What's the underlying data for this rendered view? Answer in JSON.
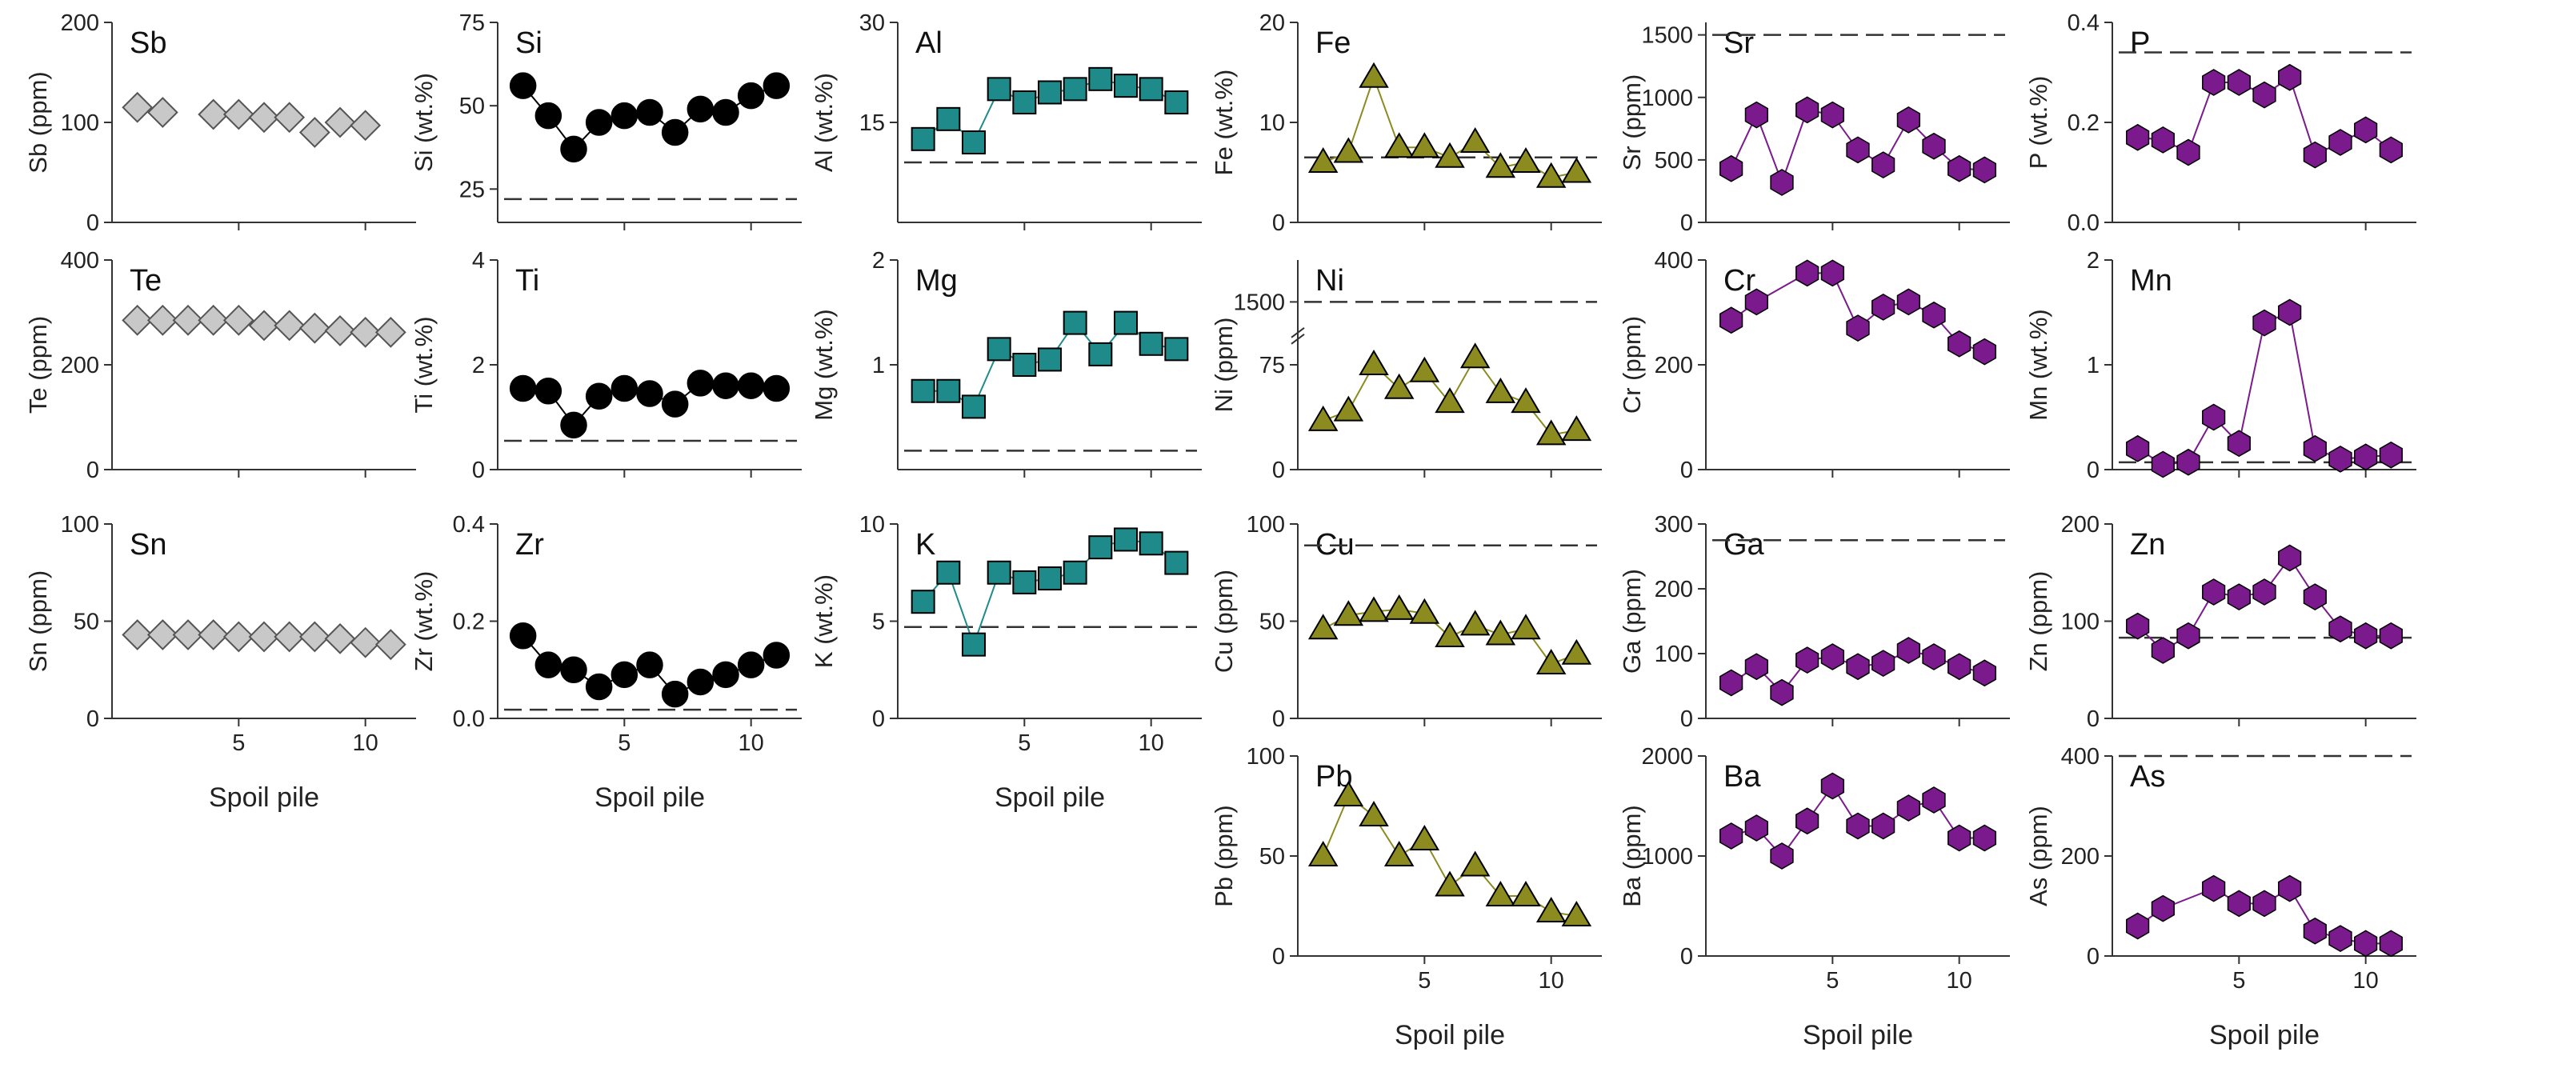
{
  "figure": {
    "x_axis_label": "Spoil pile",
    "colors": {
      "grey": "#c8c8c8",
      "black": "#000000",
      "teal": "#1f8a8a",
      "olive": "#8b8b20",
      "purple": "#7a1a8c"
    }
  },
  "chart_data": [
    {
      "id": "Sb",
      "type": "scatter",
      "title": "Sb",
      "ylabel": "Sb (ppm)",
      "ylim": [
        0,
        200
      ],
      "yticks": [
        0,
        100,
        200
      ],
      "xlim": [
        0,
        12
      ],
      "xticks": [
        5,
        10
      ],
      "marker": "diamond",
      "color": "#c8c8c8",
      "connect": false,
      "x": [
        1,
        2,
        4,
        5,
        6,
        7,
        8,
        9,
        10
      ],
      "values": [
        115,
        110,
        108,
        108,
        105,
        105,
        90,
        100,
        97
      ],
      "reference": null
    },
    {
      "id": "Si",
      "type": "line",
      "title": "Si",
      "ylabel": "Si (wt.%)",
      "ylim": [
        15,
        75
      ],
      "yticks": [
        25,
        50,
        75
      ],
      "xlim": [
        0,
        12
      ],
      "xticks": [
        5,
        10
      ],
      "marker": "circle",
      "color": "#000000",
      "connect": true,
      "x": [
        1,
        2,
        3,
        4,
        5,
        6,
        7,
        8,
        9,
        10,
        11
      ],
      "values": [
        56,
        47,
        37,
        45,
        47,
        48,
        42,
        49,
        48,
        53,
        56
      ],
      "reference": 22
    },
    {
      "id": "Al",
      "type": "line",
      "title": "Al",
      "ylabel": "Al (wt.%)",
      "ylim": [
        0,
        30
      ],
      "yticks": [
        15,
        30
      ],
      "xlim": [
        0,
        12
      ],
      "xticks": [
        5,
        10
      ],
      "marker": "square",
      "color": "#1f8a8a",
      "connect": true,
      "x": [
        1,
        2,
        3,
        4,
        5,
        6,
        7,
        8,
        9,
        10,
        11
      ],
      "values": [
        12.5,
        15.5,
        12,
        20,
        18,
        19.5,
        20,
        21.5,
        20.5,
        20,
        18
      ],
      "reference": 9
    },
    {
      "id": "Fe",
      "type": "line",
      "title": "Fe",
      "ylabel": "Fe (wt.%)",
      "ylim": [
        0,
        20
      ],
      "yticks": [
        0,
        10,
        20
      ],
      "xlim": [
        0,
        12
      ],
      "xticks": [
        5,
        10
      ],
      "marker": "triangle",
      "color": "#8b8b20",
      "connect": true,
      "x": [
        1,
        2,
        3,
        4,
        5,
        6,
        7,
        8,
        9,
        10,
        11
      ],
      "values": [
        6,
        7,
        14.5,
        7.5,
        7.5,
        6.5,
        8,
        5.5,
        6,
        4.5,
        5
      ],
      "reference": 6.5
    },
    {
      "id": "Sr",
      "type": "line",
      "title": "Sr",
      "ylabel": "Sr (ppm)",
      "ylim": [
        0,
        1600
      ],
      "yticks": [
        0,
        500,
        1000,
        1500
      ],
      "xlim": [
        0,
        12
      ],
      "xticks": [
        5,
        10
      ],
      "marker": "hexagon",
      "color": "#7a1a8c",
      "connect": true,
      "x": [
        1,
        2,
        3,
        4,
        5,
        6,
        7,
        8,
        9,
        10,
        11
      ],
      "values": [
        430,
        860,
        320,
        900,
        860,
        580,
        460,
        820,
        610,
        430,
        420
      ],
      "reference": 1500
    },
    {
      "id": "P",
      "type": "line",
      "title": "P",
      "ylabel": "P (wt.%)",
      "ylim": [
        0,
        0.4
      ],
      "yticks": [
        0.0,
        0.2,
        0.4
      ],
      "ytick_labels": [
        "0.0",
        "0.2",
        "0.4"
      ],
      "xlim": [
        0,
        12
      ],
      "xticks": [
        5,
        10
      ],
      "marker": "hexagon",
      "color": "#7a1a8c",
      "connect": true,
      "x": [
        1,
        2,
        3,
        4,
        5,
        6,
        7,
        8,
        9,
        10,
        11
      ],
      "values": [
        0.17,
        0.165,
        0.14,
        0.28,
        0.28,
        0.255,
        0.29,
        0.135,
        0.16,
        0.185,
        0.145
      ],
      "reference": 0.34
    },
    {
      "id": "Te",
      "type": "scatter",
      "title": "Te",
      "ylabel": "Te (ppm)",
      "ylim": [
        0,
        400
      ],
      "yticks": [
        0,
        200,
        400
      ],
      "xlim": [
        0,
        12
      ],
      "xticks": [
        5,
        10
      ],
      "marker": "diamond",
      "color": "#c8c8c8",
      "connect": false,
      "x": [
        1,
        2,
        3,
        4,
        5,
        6,
        7,
        8,
        9,
        10,
        11
      ],
      "values": [
        285,
        285,
        285,
        285,
        285,
        275,
        275,
        270,
        265,
        262,
        262
      ],
      "reference": null
    },
    {
      "id": "Ti",
      "type": "line",
      "title": "Ti",
      "ylabel": "Ti (wt.%)",
      "ylim": [
        0,
        4
      ],
      "yticks": [
        0,
        2,
        4
      ],
      "xlim": [
        0,
        12
      ],
      "xticks": [
        5,
        10
      ],
      "marker": "circle",
      "color": "#000000",
      "connect": true,
      "x": [
        1,
        2,
        3,
        4,
        5,
        6,
        7,
        8,
        9,
        10,
        11
      ],
      "values": [
        1.55,
        1.5,
        0.85,
        1.4,
        1.55,
        1.45,
        1.25,
        1.65,
        1.6,
        1.6,
        1.55
      ],
      "reference": 0.55
    },
    {
      "id": "Mg",
      "type": "line",
      "title": "Mg",
      "ylabel": "Mg (wt.%)",
      "ylim": [
        0,
        2
      ],
      "yticks": [
        1,
        2
      ],
      "xlim": [
        0,
        12
      ],
      "xticks": [
        5,
        10
      ],
      "marker": "square",
      "color": "#1f8a8a",
      "connect": true,
      "x": [
        1,
        2,
        3,
        4,
        5,
        6,
        7,
        8,
        9,
        10,
        11
      ],
      "values": [
        0.75,
        0.75,
        0.6,
        1.15,
        1.0,
        1.05,
        1.4,
        1.1,
        1.4,
        1.2,
        1.15
      ],
      "reference": 0.18
    },
    {
      "id": "Ni",
      "type": "line",
      "title": "Ni",
      "ylabel": "Ni (ppm)",
      "ylim": [
        0,
        150
      ],
      "yticks": [
        0,
        75
      ],
      "extra_tick": {
        "value": 1500,
        "label": "1500",
        "at": 120
      },
      "xlim": [
        0,
        12
      ],
      "xticks": [
        5,
        10
      ],
      "marker": "triangle",
      "color": "#8b8b20",
      "connect": true,
      "x": [
        1,
        2,
        3,
        4,
        5,
        6,
        7,
        8,
        9,
        10,
        11
      ],
      "values": [
        35,
        42,
        75,
        58,
        70,
        48,
        80,
        55,
        48,
        25,
        28
      ],
      "reference_plot_at": 120
    },
    {
      "id": "Cr",
      "type": "line",
      "title": "Cr",
      "ylabel": "Cr (ppm)",
      "ylim": [
        0,
        400
      ],
      "yticks": [
        0,
        200,
        400
      ],
      "xlim": [
        0,
        12
      ],
      "xticks": [
        5,
        10
      ],
      "marker": "hexagon",
      "color": "#7a1a8c",
      "connect": true,
      "x": [
        1,
        2,
        4,
        5,
        6,
        7,
        8,
        9,
        10,
        11
      ],
      "values": [
        285,
        320,
        375,
        375,
        270,
        310,
        320,
        295,
        240,
        225
      ],
      "reference": null
    },
    {
      "id": "Mn",
      "type": "line",
      "title": "Mn",
      "ylabel": "Mn (wt.%)",
      "ylim": [
        0,
        2
      ],
      "yticks": [
        0,
        1,
        2
      ],
      "xlim": [
        0,
        12
      ],
      "xticks": [
        5,
        10
      ],
      "marker": "hexagon",
      "color": "#7a1a8c",
      "connect": true,
      "x": [
        1,
        2,
        3,
        4,
        5,
        6,
        7,
        8,
        9,
        10,
        11
      ],
      "values": [
        0.2,
        0.05,
        0.07,
        0.5,
        0.25,
        1.4,
        1.5,
        0.2,
        0.1,
        0.12,
        0.14
      ],
      "reference": 0.07
    },
    {
      "id": "Sn",
      "type": "scatter",
      "title": "Sn",
      "ylabel": "Sn (ppm)",
      "ylim": [
        0,
        100
      ],
      "yticks": [
        0,
        50,
        100
      ],
      "xlim": [
        0,
        12
      ],
      "xticks": [
        5,
        10
      ],
      "marker": "diamond",
      "color": "#c8c8c8",
      "connect": false,
      "x": [
        1,
        2,
        3,
        4,
        5,
        6,
        7,
        8,
        9,
        10,
        11
      ],
      "values": [
        43,
        43,
        43,
        43,
        42,
        42,
        42,
        42,
        41,
        39,
        38
      ],
      "reference": null
    },
    {
      "id": "Zr",
      "type": "line",
      "title": "Zr",
      "ylabel": "Zr (wt.%)",
      "ylim": [
        0,
        0.4
      ],
      "yticks": [
        0.0,
        0.2,
        0.4
      ],
      "ytick_labels": [
        "0.0",
        "0.2",
        "0.4"
      ],
      "xlim": [
        0,
        12
      ],
      "xticks": [
        5,
        10
      ],
      "marker": "circle",
      "color": "#000000",
      "connect": true,
      "x": [
        1,
        2,
        3,
        4,
        5,
        6,
        7,
        8,
        9,
        10,
        11
      ],
      "values": [
        0.17,
        0.11,
        0.1,
        0.065,
        0.09,
        0.11,
        0.05,
        0.075,
        0.09,
        0.11,
        0.13
      ],
      "reference": 0.018
    },
    {
      "id": "K",
      "type": "line",
      "title": "K",
      "ylabel": "K (wt.%)",
      "ylim": [
        0,
        10
      ],
      "yticks": [
        0,
        5,
        10
      ],
      "xlim": [
        0,
        12
      ],
      "xticks": [
        5,
        10
      ],
      "marker": "square",
      "color": "#1f8a8a",
      "connect": true,
      "x": [
        1,
        2,
        3,
        4,
        5,
        6,
        7,
        8,
        9,
        10,
        11
      ],
      "values": [
        6,
        7.5,
        3.8,
        7.5,
        7,
        7.2,
        7.5,
        8.8,
        9.2,
        9,
        8
      ],
      "reference": 4.7
    },
    {
      "id": "Cu",
      "type": "line",
      "title": "Cu",
      "ylabel": "Cu (ppm)",
      "ylim": [
        0,
        100
      ],
      "yticks": [
        0,
        50,
        100
      ],
      "xlim": [
        0,
        12
      ],
      "xticks": [
        5,
        10
      ],
      "marker": "triangle",
      "color": "#8b8b20",
      "connect": true,
      "x": [
        1,
        2,
        3,
        4,
        5,
        6,
        7,
        8,
        9,
        10,
        11
      ],
      "values": [
        46,
        53,
        55,
        56,
        54,
        42,
        48,
        43,
        46,
        28,
        33
      ],
      "reference": 89
    },
    {
      "id": "Ga",
      "type": "line",
      "title": "Ga",
      "ylabel": "Ga (ppm)",
      "ylim": [
        0,
        300
      ],
      "yticks": [
        0,
        100,
        200,
        300
      ],
      "xlim": [
        0,
        12
      ],
      "xticks": [
        5,
        10
      ],
      "marker": "hexagon",
      "color": "#7a1a8c",
      "connect": true,
      "x": [
        1,
        2,
        3,
        4,
        5,
        6,
        7,
        8,
        9,
        10,
        11
      ],
      "values": [
        55,
        80,
        40,
        90,
        95,
        80,
        85,
        105,
        95,
        80,
        70
      ],
      "reference": 275
    },
    {
      "id": "Zn",
      "type": "line",
      "title": "Zn",
      "ylabel": "Zn (ppm)",
      "ylim": [
        0,
        200
      ],
      "yticks": [
        0,
        100,
        200
      ],
      "xlim": [
        0,
        12
      ],
      "xticks": [
        5,
        10
      ],
      "marker": "hexagon",
      "color": "#7a1a8c",
      "connect": true,
      "x": [
        1,
        2,
        3,
        4,
        5,
        6,
        7,
        8,
        9,
        10,
        11
      ],
      "values": [
        95,
        70,
        85,
        130,
        125,
        130,
        165,
        125,
        92,
        85,
        85
      ],
      "reference": 83
    },
    {
      "id": "Pb",
      "type": "line",
      "title": "Pb",
      "ylabel": "Pb (ppm)",
      "ylim": [
        0,
        100
      ],
      "yticks": [
        0,
        50,
        100
      ],
      "xlim": [
        0,
        12
      ],
      "xticks": [
        5,
        10
      ],
      "marker": "triangle",
      "color": "#8b8b20",
      "connect": true,
      "x": [
        1,
        2,
        3,
        4,
        5,
        6,
        7,
        8,
        9,
        10,
        11
      ],
      "values": [
        50,
        80,
        70,
        50,
        58,
        35,
        45,
        30,
        30,
        22,
        20
      ],
      "reference": null
    },
    {
      "id": "Ba",
      "type": "line",
      "title": "Ba",
      "ylabel": "Ba (ppm)",
      "ylim": [
        0,
        2000
      ],
      "yticks": [
        0,
        1000,
        2000
      ],
      "xlim": [
        0,
        12
      ],
      "xticks": [
        5,
        10
      ],
      "marker": "hexagon",
      "color": "#7a1a8c",
      "connect": true,
      "x": [
        1,
        2,
        3,
        4,
        5,
        6,
        7,
        8,
        9,
        10,
        11
      ],
      "values": [
        1200,
        1280,
        1000,
        1350,
        1700,
        1300,
        1300,
        1480,
        1560,
        1180,
        1180
      ],
      "reference": null
    },
    {
      "id": "As",
      "type": "line",
      "title": "As",
      "ylabel": "As (ppm)",
      "ylim": [
        0,
        400
      ],
      "yticks": [
        0,
        200,
        400
      ],
      "xlim": [
        0,
        12
      ],
      "xticks": [
        5,
        10
      ],
      "marker": "hexagon",
      "color": "#7a1a8c",
      "connect": true,
      "x": [
        1,
        2,
        4,
        5,
        6,
        7,
        8,
        9,
        10,
        11
      ],
      "values": [
        60,
        95,
        135,
        105,
        105,
        135,
        50,
        35,
        25,
        25
      ],
      "reference": 400
    }
  ]
}
